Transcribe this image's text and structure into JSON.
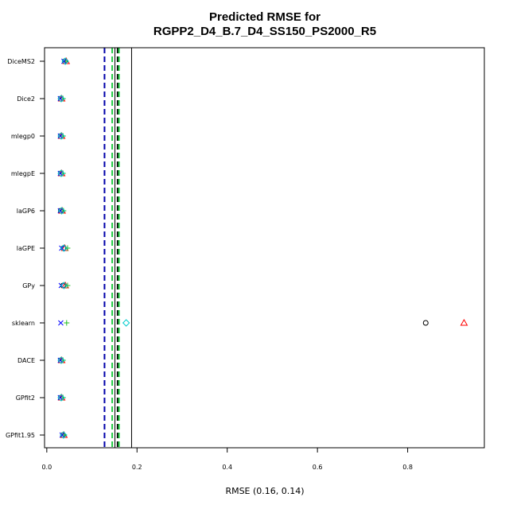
{
  "chart_data": {
    "type": "scatter",
    "title_line1": "Predicted RMSE for",
    "title_line2": "RGPP2_D4_B.7_D4_SS150_PS2000_R5",
    "xlabel": "RMSE (0.16, 0.14)",
    "ylabel": "",
    "xlim": [
      -0.005,
      0.97
    ],
    "x_ticks": [
      {
        "value": 0,
        "label": "0.0"
      },
      {
        "value": 0.2,
        "label": "0.2"
      },
      {
        "value": 0.4,
        "label": "0.4"
      },
      {
        "value": 0.6,
        "label": "0.6"
      },
      {
        "value": 0.8,
        "label": "0.8"
      }
    ],
    "categories": [
      "DiceMS2",
      "Dice2",
      "mlegp0",
      "mlegpE",
      "laGP6",
      "laGPE",
      "GPy",
      "sklearn",
      "DACE",
      "GPfit2",
      "GPfit1.95"
    ],
    "grid": false,
    "series": [
      {
        "marker": "circle",
        "color": "#000000",
        "values": [
          0.04,
          0.031,
          0.031,
          0.031,
          0.031,
          0.037,
          0.036,
          0.84,
          0.031,
          0.031,
          0.036
        ]
      },
      {
        "marker": "triangle",
        "color": "#ff0000",
        "values": [
          0.043,
          0.033,
          0.033,
          0.033,
          0.034,
          0.04,
          0.041,
          0.925,
          0.033,
          0.033,
          0.038
        ]
      },
      {
        "marker": "plus",
        "color": "#22bb22",
        "values": [
          0.042,
          0.036,
          0.036,
          0.036,
          0.037,
          0.046,
          0.046,
          0.044,
          0.036,
          0.036,
          0.039
        ]
      },
      {
        "marker": "x",
        "color": "#0000ff",
        "values": [
          0.038,
          0.03,
          0.03,
          0.03,
          0.03,
          0.033,
          0.032,
          0.031,
          0.03,
          0.03,
          0.034
        ]
      },
      {
        "marker": "diamond",
        "color": "#00cccc",
        "values": [
          0.041,
          0.032,
          0.032,
          0.032,
          0.033,
          0.038,
          0.038,
          0.176,
          0.032,
          0.032,
          0.037
        ]
      }
    ],
    "reference_lines": [
      {
        "value": 0.128,
        "color": "#0000aa",
        "style": "dashed"
      },
      {
        "value": 0.145,
        "color": "#22cc44",
        "style": "dashed"
      },
      {
        "value": 0.151,
        "color": "#000000",
        "style": "solid"
      },
      {
        "value": 0.157,
        "color": "#000000",
        "style": "dashed"
      },
      {
        "value": 0.16,
        "color": "#22cc44",
        "style": "dashed"
      },
      {
        "value": 0.188,
        "color": "#000000",
        "style": "solid"
      }
    ]
  }
}
